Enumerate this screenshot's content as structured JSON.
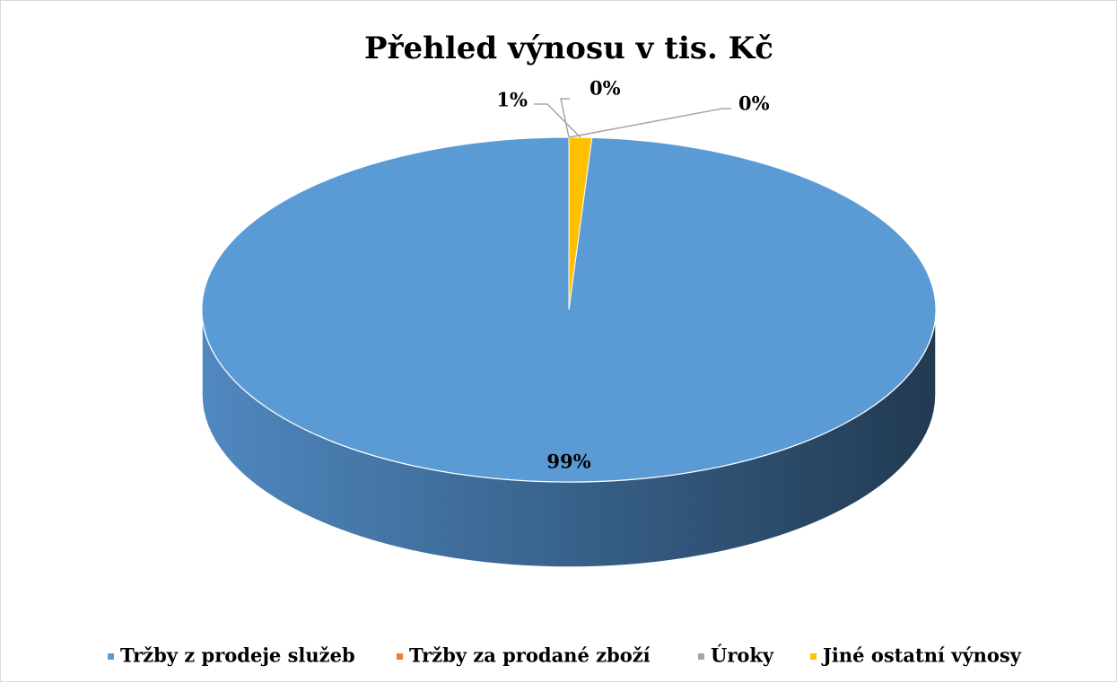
{
  "chart_data": {
    "type": "pie",
    "title": "Přehled výnosu v tis. Kč",
    "categories": [
      "Tržby z prodeje služeb",
      "Tržby za prodané zboží",
      "Úroky",
      "Jiné ostatní výnosy"
    ],
    "values": [
      99,
      0,
      0,
      1
    ],
    "value_labels": [
      "99%",
      "0%",
      "0%",
      "1%"
    ],
    "colors": [
      "#5b9bd5",
      "#ed7d31",
      "#a5a5a5",
      "#ffc000"
    ],
    "legend": "bottom"
  }
}
